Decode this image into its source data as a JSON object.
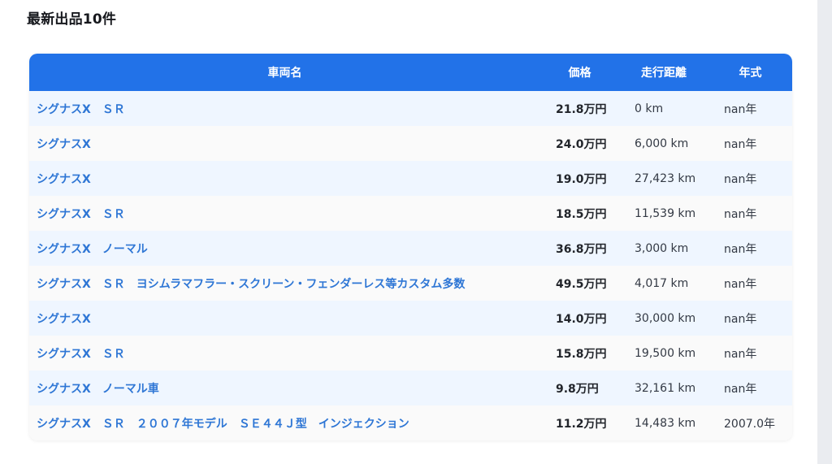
{
  "page": {
    "title": "最新出品10件"
  },
  "colors": {
    "header_bg": "#2272e8",
    "header_text": "#ffffff",
    "row_odd_bg": "#eff6ff",
    "row_even_bg": "#fafafa",
    "link_blue": "#2e76d5",
    "scrollbar_track": "#eaecf0"
  },
  "table": {
    "columns": [
      {
        "key": "name",
        "label": "車両名"
      },
      {
        "key": "price",
        "label": "価格"
      },
      {
        "key": "mileage",
        "label": "走行距離"
      },
      {
        "key": "year",
        "label": "年式"
      }
    ],
    "rows": [
      {
        "name": "シグナスX　ＳＲ",
        "price": "21.8万円",
        "mileage": "0 km",
        "year": "nan年"
      },
      {
        "name": "シグナスX",
        "price": "24.0万円",
        "mileage": "6,000 km",
        "year": "nan年"
      },
      {
        "name": "シグナスX",
        "price": "19.0万円",
        "mileage": "27,423 km",
        "year": "nan年"
      },
      {
        "name": "シグナスX　ＳＲ",
        "price": "18.5万円",
        "mileage": "11,539 km",
        "year": "nan年"
      },
      {
        "name": "シグナスX　ノーマル",
        "price": "36.8万円",
        "mileage": "3,000 km",
        "year": "nan年"
      },
      {
        "name": "シグナスX　ＳＲ　ヨシムラマフラー・スクリーン・フェンダーレス等カスタム多数",
        "price": "49.5万円",
        "mileage": "4,017 km",
        "year": "nan年"
      },
      {
        "name": "シグナスX",
        "price": "14.0万円",
        "mileage": "30,000 km",
        "year": "nan年"
      },
      {
        "name": "シグナスX　ＳＲ",
        "price": "15.8万円",
        "mileage": "19,500 km",
        "year": "nan年"
      },
      {
        "name": "シグナスX　ノーマル車",
        "price": "9.8万円",
        "mileage": "32,161 km",
        "year": "nan年"
      },
      {
        "name": "シグナスX　ＳＲ　２００７年モデル　ＳＥ４４Ｊ型　インジェクション",
        "price": "11.2万円",
        "mileage": "14,483 km",
        "year": "2007.0年"
      }
    ]
  }
}
